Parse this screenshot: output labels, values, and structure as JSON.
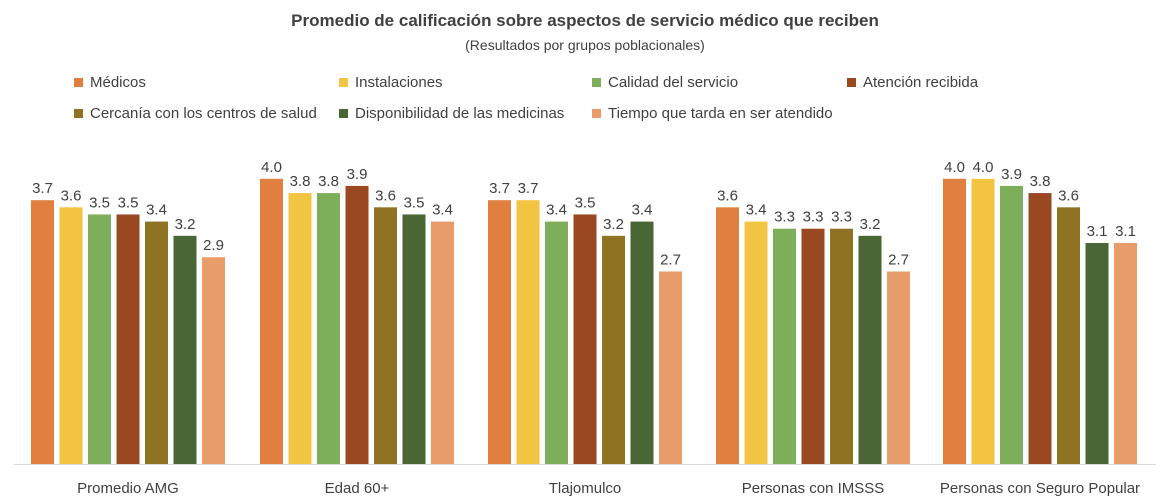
{
  "chart_data": {
    "type": "bar",
    "title": "Promedio de calificación sobre aspectos de servicio médico que reciben",
    "subtitle": "(Resultados por grupos poblacionales)",
    "xlabel": "",
    "ylabel": "",
    "ylim": [
      0,
      4.5
    ],
    "grid": false,
    "legend_position": "top",
    "categories": [
      "Promedio AMG",
      "Edad 60+",
      "Tlajomulco",
      "Personas con IMSSS",
      "Personas con Seguro Popular"
    ],
    "series": [
      {
        "name": "Médicos",
        "color": "#E07F3F",
        "values": [
          3.7,
          4.0,
          3.7,
          3.6,
          4.0
        ]
      },
      {
        "name": "Instalaciones",
        "color": "#F3C342",
        "values": [
          3.6,
          3.8,
          3.7,
          3.4,
          4.0
        ]
      },
      {
        "name": "Calidad del servicio",
        "color": "#7DAF5B",
        "values": [
          3.5,
          3.8,
          3.4,
          3.3,
          3.9
        ]
      },
      {
        "name": "Atención recibida",
        "color": "#994821",
        "values": [
          3.5,
          3.9,
          3.5,
          3.3,
          3.8
        ]
      },
      {
        "name": "Cercanía con los centros de salud",
        "color": "#8F7323",
        "values": [
          3.4,
          3.6,
          3.2,
          3.3,
          3.6
        ]
      },
      {
        "name": "Disponibilidad de las medicinas",
        "color": "#4A6634",
        "values": [
          3.2,
          3.5,
          3.4,
          3.2,
          3.1
        ]
      },
      {
        "name": "Tiempo que tarda en ser atendido",
        "color": "#E89C6A",
        "values": [
          2.9,
          3.4,
          2.7,
          2.7,
          3.1
        ]
      }
    ]
  }
}
